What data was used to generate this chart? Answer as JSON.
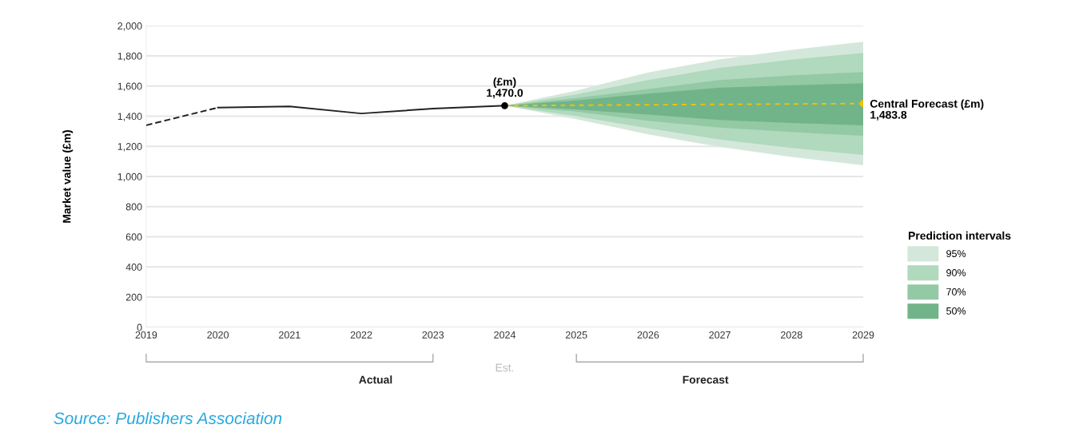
{
  "chart_data": {
    "type": "line",
    "ylabel": "Market value (£m)",
    "legend_title": "Prediction intervals",
    "xlim": [
      2019,
      2029
    ],
    "xticks": [
      2019,
      2020,
      2021,
      2022,
      2023,
      2024,
      2025,
      2026,
      2027,
      2028,
      2029
    ],
    "ylim": [
      0,
      2000
    ],
    "yticks": [
      0,
      200,
      400,
      600,
      800,
      {
        "value": 1000,
        "label": "1,000"
      },
      {
        "value": 1200,
        "label": "1,200"
      },
      {
        "value": 1400,
        "label": "1,400"
      },
      {
        "value": 1600,
        "label": "1,600"
      },
      {
        "value": 1800,
        "label": "1,800"
      },
      {
        "value": 2000,
        "label": "2,000"
      }
    ],
    "grid": "y",
    "legend": "bottom right",
    "series": [
      {
        "name": "95%",
        "type": "line",
        "line_style": "dotted",
        "color": "#d3e8da",
        "x": [
          2024,
          2025,
          2026,
          2027,
          2028,
          2029
        ],
        "values": [
          null,
          null,
          null,
          null,
          null,
          null
        ],
        "lower": [
          1470,
          1380,
          1280,
          1196,
          1130,
          1074
        ],
        "upper": [
          1470,
          1570,
          1690,
          1778,
          1840,
          1894
        ]
      },
      {
        "name": "90%",
        "type": "line",
        "line_style": "dotted",
        "color": "#b0d9bd",
        "x": [
          2024,
          2025,
          2026,
          2027,
          2028,
          2029
        ],
        "values": [
          null,
          null,
          null,
          null,
          null,
          null
        ],
        "lower": [
          1470,
          1400,
          1320,
          1245,
          1190,
          1143
        ],
        "upper": [
          1470,
          1545,
          1640,
          1720,
          1775,
          1820
        ]
      },
      {
        "name": "70%",
        "type": "line",
        "line_style": "dotted",
        "color": "#93c9a4",
        "x": [
          2024,
          2025,
          2026,
          2027,
          2028,
          2029
        ],
        "values": [
          null,
          null,
          null,
          null,
          null,
          null
        ],
        "lower": [
          1470,
          1430,
          1370,
          1325,
          1295,
          1270
        ],
        "upper": [
          1470,
          1520,
          1580,
          1640,
          1670,
          1693
        ]
      },
      {
        "name": "50%",
        "type": "line",
        "line_style": "dotted",
        "color": "#72b48a",
        "x": [
          2024,
          2025,
          2026,
          2027,
          2028,
          2029
        ],
        "values": [
          null,
          null,
          null,
          null,
          null,
          null
        ],
        "lower": [
          1470,
          1445,
          1410,
          1375,
          1355,
          1339
        ],
        "upper": [
          1470,
          1505,
          1550,
          1590,
          1605,
          1619
        ]
      },
      {
        "color": "#222222",
        "line_style": "dashed",
        "marker": "none",
        "x": [
          2019,
          2020
        ],
        "values": [
          1340,
          1457
        ]
      },
      {
        "color": "#222222",
        "line_style": "solid",
        "marker": "none",
        "x": [
          2020,
          2021,
          2022,
          2023,
          2024
        ],
        "values": [
          1457,
          1465,
          1418,
          1450,
          1470.0
        ]
      },
      {
        "type": "line",
        "color": "#f2c200",
        "line_style": "dotted",
        "marker": "none",
        "x": [
          2024,
          2029
        ],
        "values": [
          1470.0,
          1483.8
        ]
      },
      {
        "type": "scatter",
        "color": "#f2c200",
        "marker": "circle",
        "x": [
          2029
        ],
        "values": [
          1483.8
        ]
      },
      {
        "type": "scatter",
        "color": "#000000",
        "marker": "circle",
        "x": [
          2024
        ],
        "values": [
          1470.0
        ]
      }
    ],
    "annotations": [
      {
        "text": "(£m)\n1,470.0",
        "x": 2024,
        "y": 1470.0
      },
      {
        "text": "Central Forecast (£m)\n1,483.8",
        "x": 2029,
        "y": 1483.8
      },
      "Actual",
      "Est.",
      "Forecast",
      "Source: Publishers Association"
    ]
  }
}
